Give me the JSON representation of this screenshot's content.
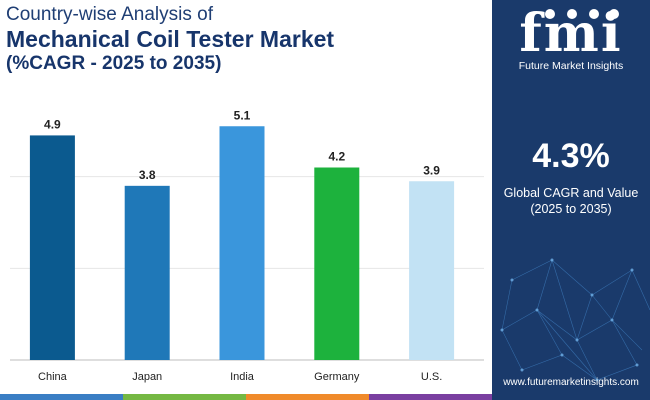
{
  "header": {
    "line1": "Country-wise Analysis of",
    "line2": "Mechanical Coil Tester Market",
    "line3": "(%CAGR - 2025 to 2035)"
  },
  "chart_data": {
    "type": "bar",
    "title": "Country-wise Analysis of Mechanical Coil Tester Market (%CAGR - 2025 to 2035)",
    "categories": [
      "China",
      "Japan",
      "India",
      "Germany",
      "U.S."
    ],
    "values": [
      4.9,
      3.8,
      5.1,
      4.2,
      3.9
    ],
    "labels": [
      "4.9",
      "3.8",
      "5.1",
      "4.2",
      "3.9"
    ],
    "colors": [
      "#0b5a8f",
      "#1f78b8",
      "#3a96dc",
      "#1db23d",
      "#c2e2f4"
    ],
    "xlabel": "",
    "ylabel": "",
    "ylim": [
      0,
      6
    ],
    "grid": true
  },
  "panel": {
    "logo_mark": "fmi",
    "logo_text": "Future Market Insights",
    "cagr_value": "4.3%",
    "cagr_label": "Global CAGR and Value",
    "cagr_sub": "(2025 to 2035)",
    "website": "www.futuremarketinsights.com"
  },
  "colors": {
    "panel_bg": "#1a3a6b",
    "title": "#17356b",
    "strip": [
      "#3a7ec4",
      "#75b843",
      "#f08a2a",
      "#7a3fa0"
    ]
  }
}
